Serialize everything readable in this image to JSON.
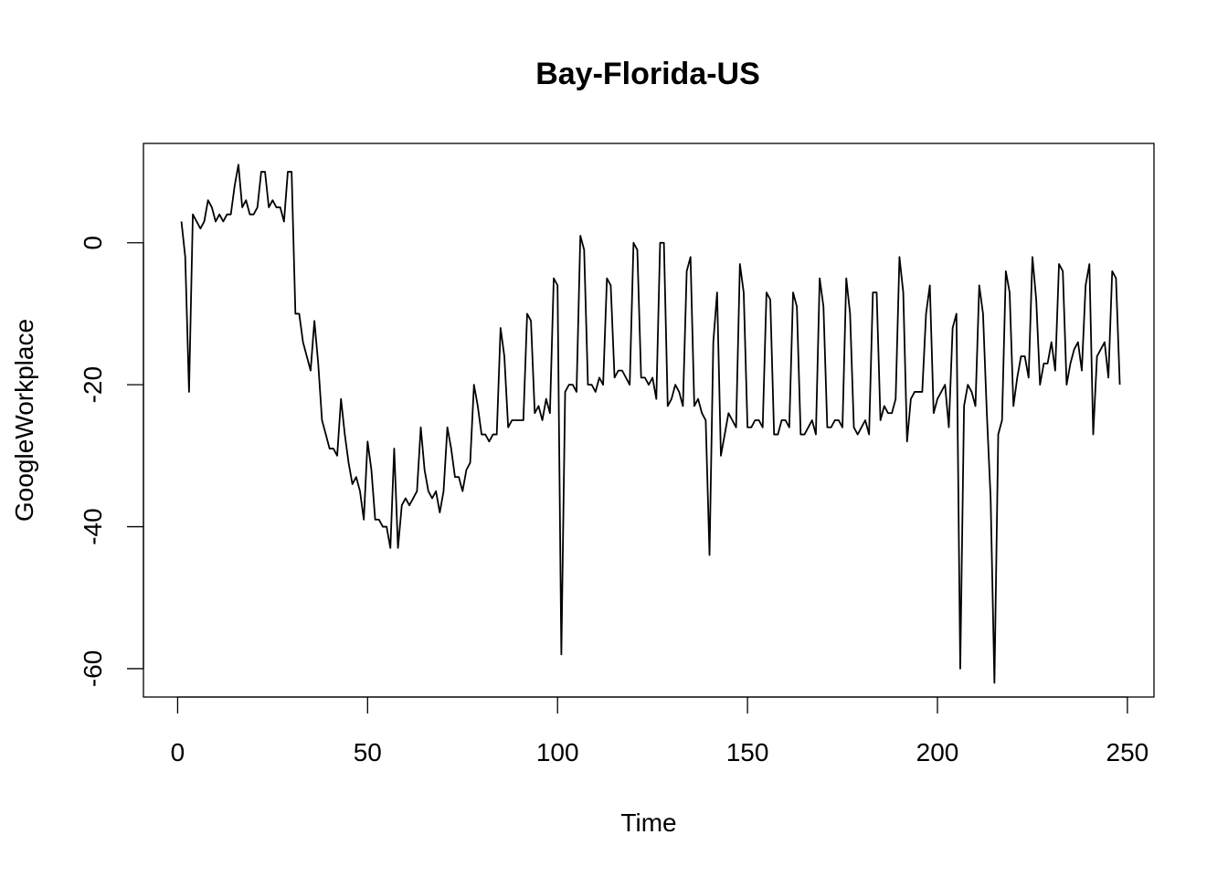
{
  "chart_data": {
    "type": "line",
    "title": "Bay-Florida-US",
    "xlabel": "Time",
    "ylabel": "GoogleWorkplace",
    "xlim": [
      -9,
      257
    ],
    "ylim": [
      -64,
      14
    ],
    "xticks": [
      0,
      50,
      100,
      150,
      200,
      250
    ],
    "yticks": [
      -60,
      -40,
      -20,
      0
    ],
    "xtick_labels": [
      "0",
      "50",
      "100",
      "150",
      "200",
      "250"
    ],
    "ytick_labels": [
      "-60",
      "-40",
      "-20",
      "0"
    ],
    "grid": false,
    "legend": "none",
    "series": [
      {
        "color": "#000000",
        "x_start": 1,
        "values": [
          3,
          -2,
          -21,
          4,
          3,
          2,
          3,
          6,
          5,
          3,
          4,
          3,
          4,
          4,
          8,
          11,
          5,
          6,
          4,
          4,
          5,
          10,
          10,
          5,
          6,
          5,
          5,
          3,
          10,
          10,
          -10,
          -10,
          -14,
          -16,
          -18,
          -11,
          -17,
          -25,
          -27,
          -29,
          -29,
          -30,
          -22,
          -27,
          -31,
          -34,
          -33,
          -35,
          -39,
          -28,
          -32,
          -39,
          -39,
          -40,
          -40,
          -43,
          -29,
          -43,
          -37,
          -36,
          -37,
          -36,
          -35,
          -26,
          -32,
          -35,
          -36,
          -35,
          -38,
          -35,
          -26,
          -29,
          -33,
          -33,
          -35,
          -32,
          -31,
          -20,
          -23,
          -27,
          -27,
          -28,
          -27,
          -27,
          -12,
          -16,
          -26,
          -25,
          -25,
          -25,
          -25,
          -10,
          -11,
          -24,
          -23,
          -25,
          -22,
          -24,
          -5,
          -6,
          -58,
          -21,
          -20,
          -20,
          -21,
          1,
          -1,
          -20,
          -20,
          -21,
          -19,
          -20,
          -5,
          -6,
          -19,
          -18,
          -18,
          -19,
          -20,
          0,
          -1,
          -19,
          -19,
          -20,
          -19,
          -22,
          0,
          0,
          -23,
          -22,
          -20,
          -21,
          -23,
          -4,
          -2,
          -23,
          -22,
          -24,
          -25,
          -44,
          -14,
          -7,
          -30,
          -27,
          -24,
          -25,
          -26,
          -3,
          -7,
          -26,
          -26,
          -25,
          -25,
          -26,
          -7,
          -8,
          -27,
          -27,
          -25,
          -25,
          -26,
          -7,
          -9,
          -27,
          -27,
          -26,
          -25,
          -27,
          -5,
          -9,
          -26,
          -26,
          -25,
          -25,
          -26,
          -5,
          -10,
          -26,
          -27,
          -26,
          -25,
          -27,
          -7,
          -7,
          -25,
          -23,
          -24,
          -24,
          -22,
          -2,
          -7,
          -28,
          -22,
          -21,
          -21,
          -21,
          -10,
          -6,
          -24,
          -22,
          -21,
          -20,
          -26,
          -12,
          -10,
          -60,
          -23,
          -20,
          -21,
          -23,
          -6,
          -10,
          -24,
          -36,
          -62,
          -27,
          -25,
          -4,
          -7,
          -23,
          -19,
          -16,
          -16,
          -19,
          -2,
          -8,
          -20,
          -17,
          -17,
          -14,
          -18,
          -3,
          -4,
          -20,
          -17,
          -15,
          -14,
          -18,
          -6,
          -3,
          -27,
          -16,
          -15,
          -14,
          -19,
          -4,
          -5,
          -20
        ]
      }
    ]
  }
}
